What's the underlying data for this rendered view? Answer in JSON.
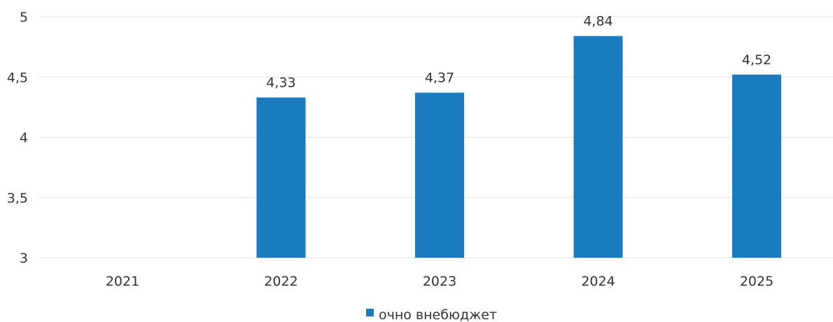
{
  "chart_data": {
    "type": "bar",
    "categories": [
      "2021",
      "2022",
      "2023",
      "2024",
      "2025"
    ],
    "series": [
      {
        "name": "очно внебюджет",
        "values": [
          null,
          4.33,
          4.37,
          4.84,
          4.52
        ],
        "value_labels": [
          "",
          "4,33",
          "4,37",
          "4,84",
          "4,52"
        ]
      }
    ],
    "y_ticks": [
      "3",
      "3,5",
      "4",
      "4,5",
      "5"
    ],
    "ylim": [
      3,
      5
    ],
    "grid": true,
    "legend_position": "bottom-center",
    "bar_color": "#1a7bbf"
  }
}
